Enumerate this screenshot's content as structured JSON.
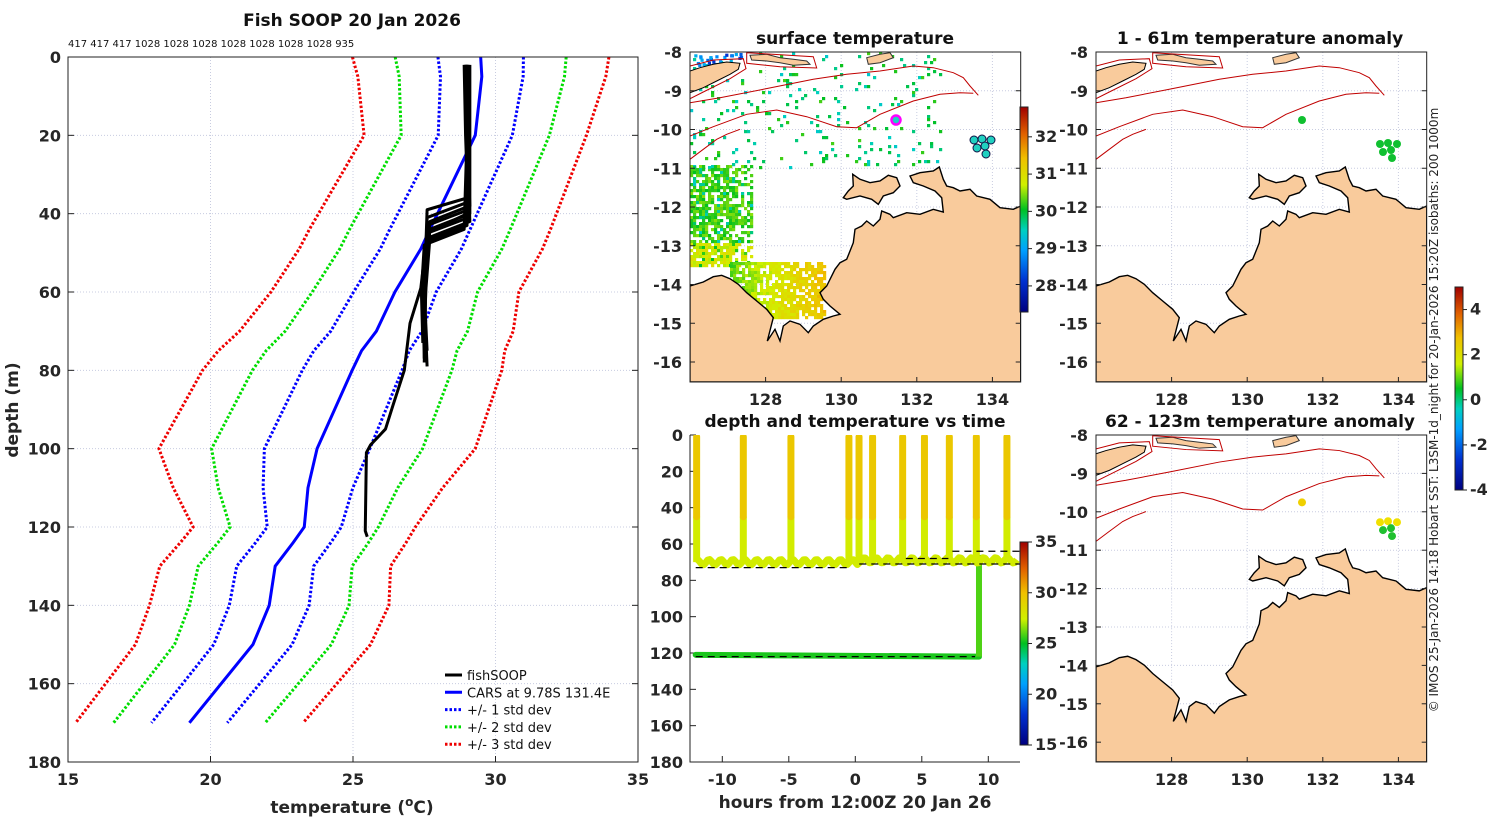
{
  "credit": "© IMOS 25-Jan-2026 14:18 Hobart SST: L3SM-1d_night for 20-Jan-2026 15:20Z isobaths: 200  1000m",
  "chart_data": [
    {
      "type": "line",
      "title": "Fish SOOP 20 Jan 2026",
      "header_counts": "417 417 417 1028 1028 1028 1028 1028 1028 1028 935",
      "xlabel_prefix": "temperature (",
      "xlabel_sup": "o",
      "xlabel_suffix": "C)",
      "ylabel": "depth (m)",
      "xlim": [
        15,
        35
      ],
      "ylim": [
        0,
        180
      ],
      "y_reversed": true,
      "xticks": [
        15,
        20,
        25,
        30,
        35
      ],
      "yticks": [
        0,
        20,
        40,
        60,
        80,
        100,
        120,
        140,
        160,
        180
      ],
      "grid": true,
      "legend_position": "bottom-right",
      "legend": [
        "fishSOOP",
        "CARS at 9.78S 131.4E",
        "+/- 1 std dev",
        "+/- 2 std dev",
        "+/- 3 std dev"
      ],
      "colors": {
        "fishsoop": "#000000",
        "cars": "#0000ff",
        "sd1": "#0000ff",
        "sd2": "#00dd00",
        "sd3": "#ee0000"
      },
      "cars": {
        "depth": [
          0,
          5,
          20,
          44,
          49,
          60,
          70,
          75,
          80,
          100,
          110,
          120,
          124,
          130,
          140,
          150,
          170
        ],
        "temp": [
          29.48,
          29.52,
          29.29,
          27.7,
          27.38,
          26.47,
          25.82,
          25.3,
          24.97,
          23.74,
          23.42,
          23.29,
          22.9,
          22.27,
          22.06,
          21.49,
          19.26
        ]
      },
      "std_dev": {
        "depth": [
          0,
          20,
          40,
          60,
          80,
          100,
          120,
          140,
          160,
          170
        ],
        "sd": [
          1.5,
          1.3,
          1.4,
          1.45,
          1.75,
          1.85,
          1.3,
          1.4,
          1.35,
          1.33
        ]
      },
      "fishsoop_profiles": [
        [
          [
            29.0,
            2
          ],
          [
            29.0,
            20
          ],
          [
            29.0,
            36
          ],
          [
            27.6,
            39
          ],
          [
            27.5,
            60
          ],
          [
            27.5,
            72
          ]
        ],
        [
          [
            29.05,
            2
          ],
          [
            29.05,
            20
          ],
          [
            29.05,
            37
          ],
          [
            27.6,
            41
          ],
          [
            27.55,
            60
          ],
          [
            27.5,
            74
          ]
        ],
        [
          [
            28.95,
            2
          ],
          [
            29.0,
            20
          ],
          [
            29.1,
            38
          ],
          [
            27.7,
            42
          ],
          [
            27.5,
            60
          ],
          [
            27.6,
            75
          ]
        ],
        [
          [
            29.0,
            3
          ],
          [
            29.0,
            20
          ],
          [
            29.05,
            39
          ],
          [
            27.6,
            43
          ],
          [
            27.45,
            60
          ],
          [
            27.5,
            77
          ]
        ],
        [
          [
            29.1,
            2
          ],
          [
            29.1,
            20
          ],
          [
            29.1,
            40
          ],
          [
            27.7,
            44
          ],
          [
            27.5,
            60
          ],
          [
            27.55,
            76
          ]
        ],
        [
          [
            28.9,
            2
          ],
          [
            28.95,
            20
          ],
          [
            29.05,
            41
          ],
          [
            27.6,
            45
          ],
          [
            27.5,
            62
          ],
          [
            27.6,
            79
          ]
        ],
        [
          [
            29.0,
            2
          ],
          [
            29.0,
            20
          ],
          [
            29.1,
            42
          ],
          [
            27.7,
            46
          ],
          [
            27.55,
            60
          ],
          [
            27.5,
            78
          ]
        ],
        [
          [
            29.05,
            3
          ],
          [
            29.05,
            20
          ],
          [
            29.0,
            43
          ],
          [
            27.6,
            47
          ],
          [
            27.5,
            60
          ],
          [
            27.55,
            76
          ]
        ],
        [
          [
            29.0,
            2
          ],
          [
            29.0,
            20
          ],
          [
            28.9,
            44
          ],
          [
            27.5,
            48
          ],
          [
            27.4,
            60
          ],
          [
            27.45,
            73
          ]
        ],
        [
          [
            29.0,
            2
          ],
          [
            29.0,
            20
          ],
          [
            29.0,
            40
          ],
          [
            27.6,
            45
          ],
          [
            27.38,
            59
          ],
          [
            27.0,
            68
          ],
          [
            26.8,
            80
          ],
          [
            26.4,
            89
          ],
          [
            26.14,
            95
          ],
          [
            25.62,
            99
          ],
          [
            25.47,
            101
          ],
          [
            25.43,
            121
          ],
          [
            25.5,
            122.5
          ]
        ]
      ]
    },
    {
      "type": "scatter",
      "title": "depth and temperature vs time",
      "xlabel": "hours from 12:00Z 20 Jan 26",
      "xlim": [
        -12.4,
        12.6
      ],
      "ylim": [
        0,
        180
      ],
      "y_reversed": true,
      "xticks": [
        -10,
        -5,
        0,
        5,
        10
      ],
      "yticks": [
        0,
        20,
        40,
        60,
        80,
        100,
        120,
        140,
        160,
        180
      ],
      "colorbar": {
        "min": 15,
        "max": 35,
        "ticks": [
          15,
          20,
          25,
          30,
          35
        ]
      },
      "shallow_track": {
        "start_h": -12.0,
        "end_h": 12.3,
        "depth_m": 70,
        "spike_hours": [
          -11.93,
          -8.42,
          -4.84,
          -0.48,
          0.28,
          1.3,
          3.56,
          5.2,
          7.07,
          9.1,
          11.4
        ],
        "surface_temp": 29.6,
        "mixed_temp": 27.6,
        "thermocline_m": 45
      },
      "deep_track": {
        "start_h": -12.0,
        "end_h": 9.3,
        "depth_m": 122,
        "rise_to_m": 66,
        "temp": 25.3
      },
      "dashed_lines": [
        {
          "from_h": -12.0,
          "to_h": -0.3,
          "depth_m": 73
        },
        {
          "from_h": 0.3,
          "to_h": 12.7,
          "depth_m": 71
        },
        {
          "from_h": 3.8,
          "to_h": 7.0,
          "depth_m": 68
        },
        {
          "from_h": 7.3,
          "to_h": 12.5,
          "depth_m": 64
        },
        {
          "from_h": -12.0,
          "to_h": 9.0,
          "depth_m": 122
        }
      ]
    },
    {
      "type": "heatmap",
      "title": "surface temperature",
      "lon_ticks": [
        128,
        130,
        132,
        134
      ],
      "lat_ticks": [
        -8,
        -9,
        -10,
        -11,
        -12,
        -13,
        -14,
        -15,
        -16
      ],
      "colorbar": {
        "min": 27.3,
        "max": 32.8,
        "ticks": [
          28,
          29,
          30,
          31,
          32
        ]
      }
    },
    {
      "type": "heatmap",
      "title": "1 - 61m temperature anomaly",
      "lon_ticks": [
        128,
        130,
        132,
        134
      ],
      "lat_ticks": [
        -8,
        -9,
        -10,
        -11,
        -12,
        -13,
        -14,
        -15,
        -16
      ]
    },
    {
      "type": "heatmap",
      "title": "62 - 123m temperature anomaly",
      "lon_ticks": [
        128,
        130,
        132,
        134
      ],
      "lat_ticks": [
        -8,
        -9,
        -10,
        -11,
        -12,
        -13,
        -14,
        -15,
        -16
      ],
      "colorbar": {
        "min": -4,
        "max": 5,
        "ticks": [
          -4,
          -2,
          0,
          2,
          4
        ]
      }
    }
  ]
}
